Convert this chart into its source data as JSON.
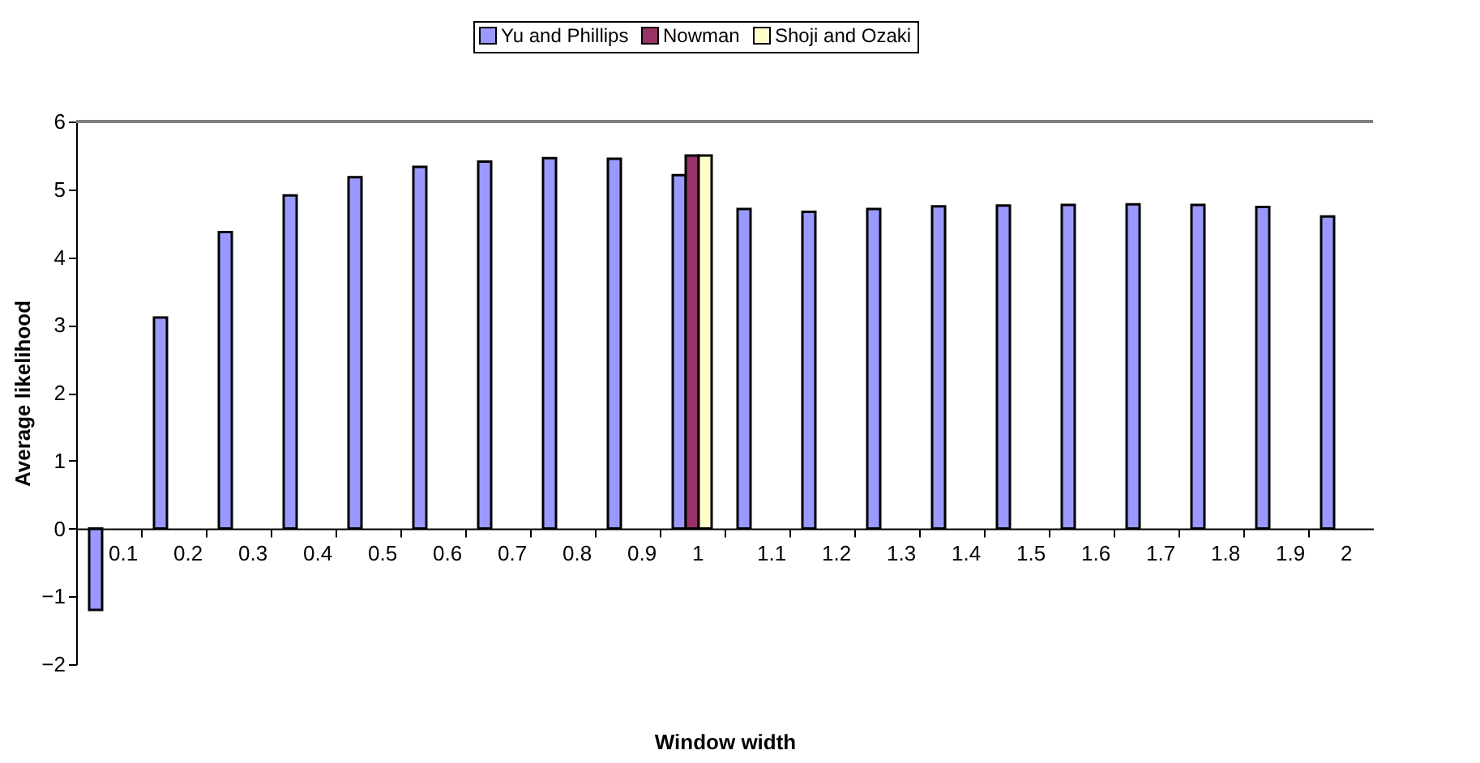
{
  "chart_data": {
    "type": "bar",
    "xlabel": "Window width",
    "ylabel": "Average likelihood",
    "categories": [
      "0.1",
      "0.2",
      "0.3",
      "0.4",
      "0.5",
      "0.6",
      "0.7",
      "0.8",
      "0.9",
      "1",
      "1.1",
      "1.2",
      "1.3",
      "1.4",
      "1.5",
      "1.6",
      "1.7",
      "1.8",
      "1.9",
      "2"
    ],
    "series": [
      {
        "name": "Yu and Phillips",
        "color": "#9999ff",
        "values": [
          -1.2,
          3.11,
          4.37,
          4.91,
          5.18,
          5.33,
          5.41,
          5.46,
          5.45,
          5.21,
          4.71,
          4.67,
          4.71,
          4.75,
          4.76,
          4.77,
          4.78,
          4.77,
          4.74,
          4.6
        ]
      },
      {
        "name": "Nowman",
        "color": "#993366",
        "values": [
          null,
          null,
          null,
          null,
          null,
          null,
          null,
          null,
          null,
          5.5,
          null,
          null,
          null,
          null,
          null,
          null,
          null,
          null,
          null,
          null
        ]
      },
      {
        "name": "Shoji and Ozaki",
        "color": "#ffffcc",
        "values": [
          null,
          null,
          null,
          null,
          null,
          null,
          null,
          null,
          null,
          5.5,
          null,
          null,
          null,
          null,
          null,
          null,
          null,
          null,
          null,
          null
        ]
      }
    ],
    "ylim": [
      -2,
      6
    ],
    "yticks": [
      -2,
      -1,
      0,
      1,
      2,
      3,
      4,
      5,
      6
    ],
    "grid": false,
    "legend": "top"
  }
}
